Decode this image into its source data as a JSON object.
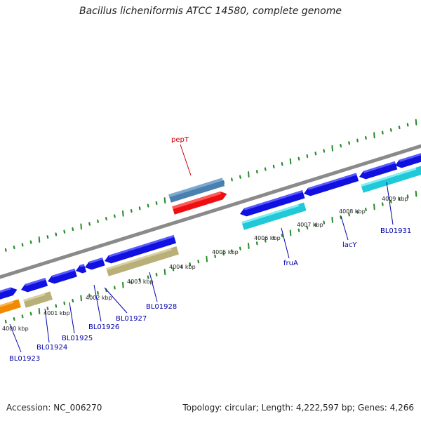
{
  "title": "Bacillus licheniformis ATCC 14580, complete genome",
  "footer": {
    "accession": "Accession: NC_006270",
    "summary": "Topology: circular; Length: 4,222,597 bp; Genes: 4,266"
  },
  "colors": {
    "backbone": "#8a8a8a",
    "tick": "#2a8a2a",
    "gene_blue": "#1010e0",
    "gene_teal": "#20c8d8",
    "gene_khaki": "#b8b078",
    "gene_orange": "#f08a00",
    "gene_red": "#ee1010",
    "gene_steel": "#4a80b0",
    "label_blue": "#0000aa",
    "label_red": "#cc0000"
  },
  "kbp_labels": [
    "4000 kbp",
    "4001 kbp",
    "4002 kbp",
    "4003 kbp",
    "4004 kbp",
    "4005 kbp",
    "4006 kbp",
    "4007 kbp",
    "4008 kbp",
    "4009 kbp"
  ],
  "gene_labels": [
    "BL01923",
    "BL01924",
    "BL01925",
    "BL01926",
    "BL01927",
    "BL01928",
    "fruA",
    "lacY",
    "BL01931",
    "pepT"
  ]
}
